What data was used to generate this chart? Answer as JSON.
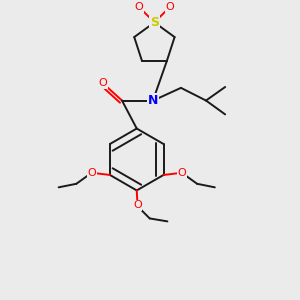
{
  "bg_color": "#ebebeb",
  "bond_color": "#1a1a1a",
  "n_color": "#0000ff",
  "o_color": "#ff0000",
  "s_color": "#cccc00",
  "line_width": 1.4,
  "figsize": [
    3.0,
    3.0
  ],
  "dpi": 100,
  "xlim": [
    0,
    10
  ],
  "ylim": [
    0,
    10
  ]
}
